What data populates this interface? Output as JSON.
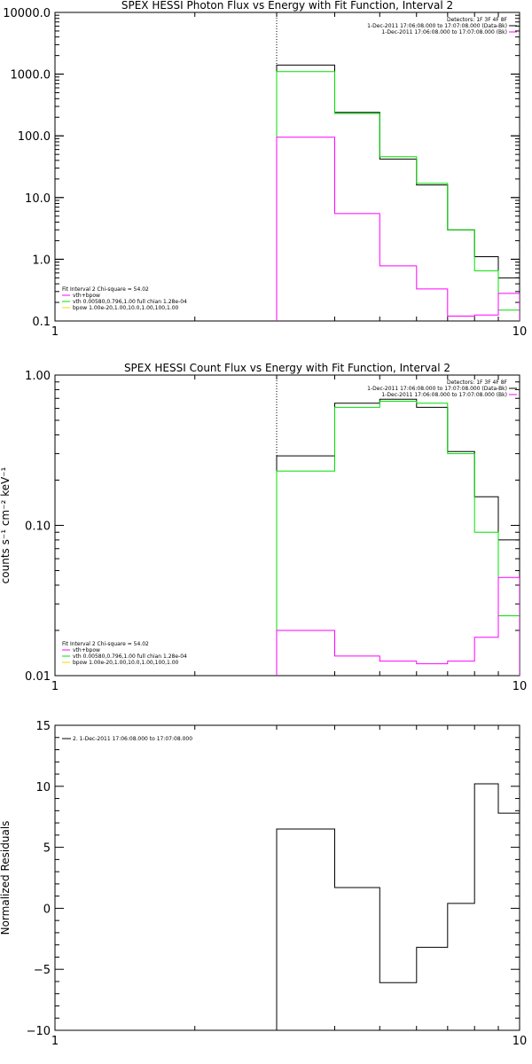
{
  "colors": {
    "data": "#000000",
    "total": "#00e000",
    "vth": "#ff00ff",
    "bpow": "#ffd000",
    "background": "#ffffff"
  },
  "chart_data": [
    {
      "id": "photon",
      "type": "line",
      "title": "SPEX HESSI Photon Flux vs Energy with Fit Function, Interval 2",
      "xlabel": "",
      "ylabel": "",
      "xscale": "log",
      "yscale": "log",
      "xlim": [
        1,
        10
      ],
      "ylim": [
        0.1,
        10000
      ],
      "xticks": [
        {
          "v": 1,
          "label": "1"
        },
        {
          "v": 10,
          "label": "10"
        }
      ],
      "yticks": [
        {
          "v": 10000,
          "label": "10000.0"
        },
        {
          "v": 1000,
          "label": "1000.0"
        },
        {
          "v": 100,
          "label": "100.0"
        },
        {
          "v": 10,
          "label": "10.0"
        },
        {
          "v": 1,
          "label": "1.0"
        },
        {
          "v": 0.1,
          "label": "0.1"
        }
      ],
      "vline_x": 3.0,
      "info_lines": [
        "Detectors: 1F 3F 4F 8F",
        "1-Dec-2011 17:06:08.000 to 17:07:08.000 (Data-Bk)",
        "1-Dec-2011 17:06:08.000 to 17:07:08.000 (Bk)"
      ],
      "fit_lines": [
        "Fit Interval 2   Chi-square = 54.02",
        "vth+bpow",
        "vth 0.00580,0.796,1.00  full chian 1.28e-04",
        "bpow 1.00e-20,1.00,10.0,1.00,100,1.00"
      ],
      "series": [
        {
          "name": "1-Dec-2011 17:06:08.000 to 17:07:08.000 (Data-Bk)",
          "color": "#000000",
          "edges": [
            3.0,
            4.0,
            5.0,
            6.0,
            7.0,
            8.0,
            9.0,
            10.0
          ],
          "values": [
            1400,
            240,
            42,
            16,
            3.0,
            1.1,
            0.5
          ]
        },
        {
          "name": "vth+bpow",
          "color": "#00e000",
          "edges": [
            3.0,
            4.0,
            5.0,
            6.0,
            7.0,
            8.0,
            9.0,
            10.0
          ],
          "values": [
            1100,
            230,
            46,
            17,
            3.0,
            0.65,
            0.15
          ]
        },
        {
          "name": "1-Dec-2011 17:06:08.000 to 17:07:08.000 (Bk)",
          "color": "#ff00ff",
          "edges": [
            3.0,
            4.0,
            5.0,
            6.0,
            7.0,
            8.0,
            9.0,
            10.0
          ],
          "values": [
            95,
            5.5,
            0.78,
            0.33,
            0.12,
            0.125,
            0.28
          ]
        }
      ]
    },
    {
      "id": "count",
      "type": "line",
      "title": "SPEX HESSI Count Flux vs Energy with Fit Function, Interval 2",
      "xlabel": "",
      "ylabel": "counts s⁻¹ cm⁻² keV⁻¹",
      "xscale": "log",
      "yscale": "log",
      "xlim": [
        1,
        10
      ],
      "ylim": [
        0.01,
        1.0
      ],
      "xticks": [
        {
          "v": 1,
          "label": "1"
        },
        {
          "v": 10,
          "label": "10"
        }
      ],
      "yticks": [
        {
          "v": 1.0,
          "label": "1.00"
        },
        {
          "v": 0.1,
          "label": "0.10"
        },
        {
          "v": 0.01,
          "label": "0.01"
        }
      ],
      "vline_x": 3.0,
      "info_lines": [
        "Detectors: 1F 3F 4F 8F",
        "1-Dec-2011 17:06:08.000 to 17:07:08.000 (Data-Bk)",
        "1-Dec-2011 17:06:08.000 to 17:07:08.000 (Bk)"
      ],
      "fit_lines": [
        "Fit Interval 2   Chi-square = 54.02",
        "vth+bpow",
        "vth 0.00580,0.796,1.00  full chian 1.28e-04",
        "bpow 1.00e-20,1.00,10.0,1.00,100,1.00"
      ],
      "series": [
        {
          "name": "1-Dec-2011 17:06:08.000 to 17:07:08.000 (Data-Bk)",
          "color": "#000000",
          "edges": [
            3.0,
            4.0,
            5.0,
            6.0,
            7.0,
            8.0,
            9.0,
            10.0
          ],
          "values": [
            0.29,
            0.65,
            0.69,
            0.61,
            0.31,
            0.155,
            0.08
          ]
        },
        {
          "name": "vth+bpow",
          "color": "#00e000",
          "edges": [
            3.0,
            4.0,
            5.0,
            6.0,
            7.0,
            8.0,
            9.0,
            10.0
          ],
          "values": [
            0.23,
            0.61,
            0.67,
            0.65,
            0.3,
            0.09,
            0.025
          ]
        },
        {
          "name": "1-Dec-2011 17:06:08.000 to 17:07:08.000 (Bk)",
          "color": "#ff00ff",
          "edges": [
            3.0,
            4.0,
            5.0,
            6.0,
            7.0,
            8.0,
            9.0,
            10.0
          ],
          "values": [
            0.02,
            0.0135,
            0.0125,
            0.012,
            0.0125,
            0.018,
            0.045
          ]
        }
      ]
    },
    {
      "id": "resid",
      "type": "line",
      "title": "",
      "xlabel": "",
      "ylabel": "Normalized Residuals",
      "xscale": "log",
      "yscale": "linear",
      "xlim": [
        1,
        10
      ],
      "ylim": [
        -10,
        15
      ],
      "xticks": [
        {
          "v": 1,
          "label": "1"
        },
        {
          "v": 10,
          "label": "10"
        }
      ],
      "yticks": [
        {
          "v": 15,
          "label": "15"
        },
        {
          "v": 10,
          "label": "10"
        },
        {
          "v": 5,
          "label": "5"
        },
        {
          "v": 0,
          "label": "0"
        },
        {
          "v": -5,
          "label": "−5"
        },
        {
          "v": -10,
          "label": "−10"
        }
      ],
      "legend": "2.  1-Dec-2011 17:06:08.000 to 17:07:08.000",
      "series": [
        {
          "name": "2.  1-Dec-2011 17:06:08.000 to 17:07:08.000",
          "color": "#000000",
          "edges": [
            3.0,
            4.0,
            5.0,
            6.0,
            7.0,
            8.0,
            9.0,
            10.0
          ],
          "values": [
            6.5,
            1.7,
            -6.1,
            -3.2,
            0.4,
            10.2,
            7.8
          ]
        }
      ]
    }
  ]
}
